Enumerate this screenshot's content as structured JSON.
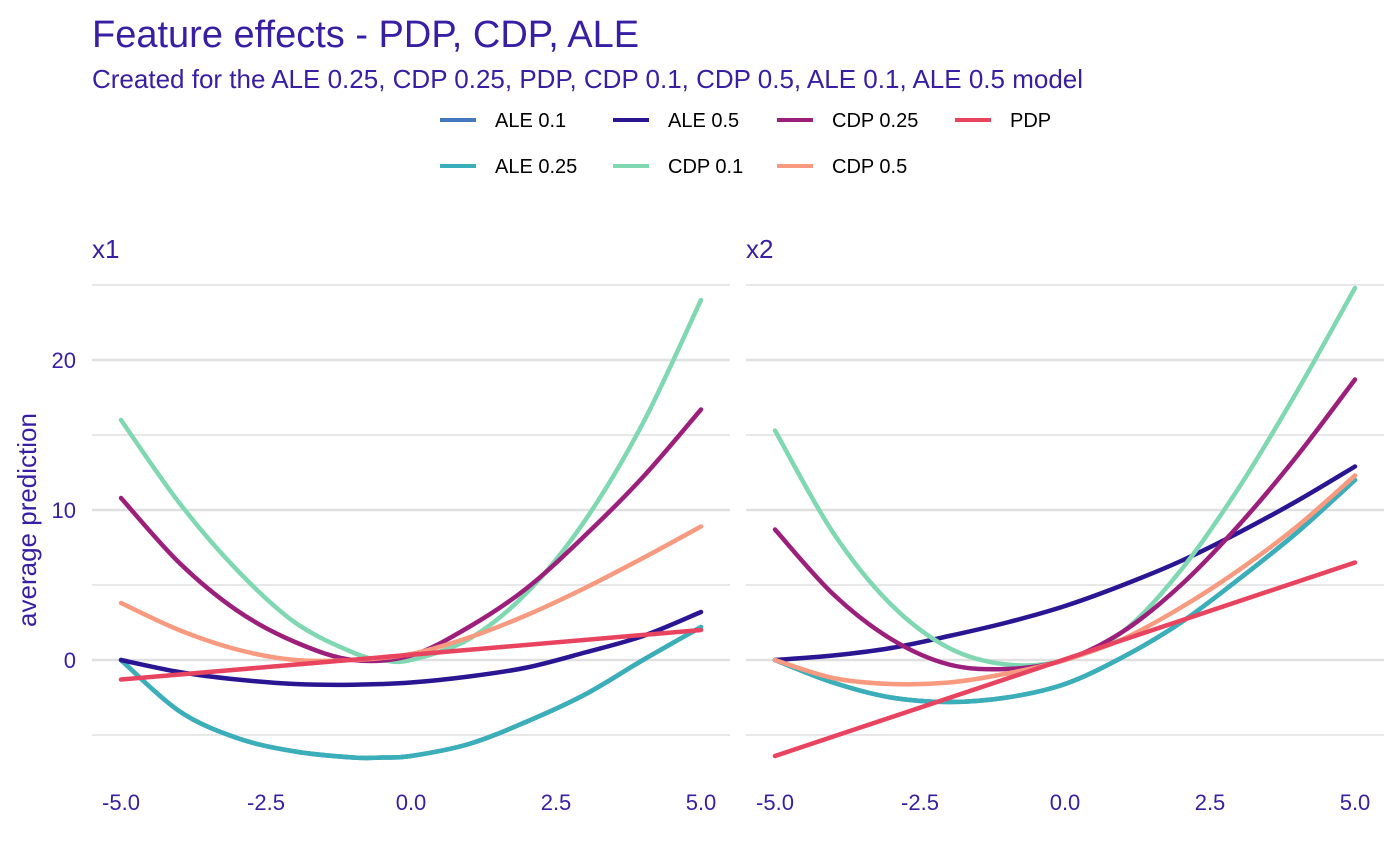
{
  "title": "Feature effects - PDP, CDP, ALE",
  "subtitle": "Created for the ALE 0.25, CDP 0.25, PDP, CDP 0.1, CDP 0.5, ALE 0.1, ALE 0.5 model",
  "colors": {
    "text": "#371ea3",
    "grid": "#e0e0e0",
    "ALE 0.1": "#4378bf",
    "ALE 0.5": "#2a1592",
    "CDP 0.25": "#9c1f7b",
    "PDP": "#e8435f",
    "ALE 0.25": "#3aafb9",
    "CDP 0.1": "#7fd8b1",
    "CDP 0.5": "#f89a7f"
  },
  "legend": {
    "position": "top",
    "row1": [
      "ALE 0.1",
      "ALE 0.5",
      "CDP 0.25",
      "PDP"
    ],
    "row2": [
      "ALE 0.25",
      "CDP 0.1",
      "CDP 0.5"
    ]
  },
  "chart_data": [
    {
      "type": "line",
      "panel": "x1",
      "title": "x1",
      "ylabel": "average prediction",
      "xlabel": "",
      "xlim": [
        -5.0,
        5.0
      ],
      "ylim": [
        -9,
        25
      ],
      "xticks": [
        "-5.0",
        "-2.5",
        "0.0",
        "2.5",
        "5.0"
      ],
      "yticks": [
        "0",
        "10",
        "20"
      ],
      "grid": true,
      "series": [
        {
          "name": "ALE 0.1",
          "x": [
            -5,
            -4,
            -3,
            -2,
            -1,
            -0.5,
            0,
            1,
            2,
            3,
            4,
            5
          ],
          "y": [
            0,
            -3.4,
            -5.2,
            -6.1,
            -6.5,
            -6.5,
            -6.4,
            -5.6,
            -4.1,
            -2.3,
            0,
            2.2
          ]
        },
        {
          "name": "ALE 0.25",
          "x": [
            -5,
            -4,
            -3,
            -2,
            -1,
            -0.5,
            0,
            1,
            2,
            3,
            4,
            5
          ],
          "y": [
            0,
            -3.4,
            -5.2,
            -6.1,
            -6.5,
            -6.5,
            -6.4,
            -5.6,
            -4.1,
            -2.3,
            0,
            2.2
          ]
        },
        {
          "name": "ALE 0.5",
          "x": [
            -5,
            -4,
            -3,
            -2,
            -1,
            0,
            1,
            2,
            3,
            4,
            5
          ],
          "y": [
            0,
            -0.8,
            -1.3,
            -1.6,
            -1.65,
            -1.5,
            -1.1,
            -0.5,
            0.5,
            1.6,
            3.2
          ]
        },
        {
          "name": "CDP 0.1",
          "x": [
            -5,
            -4,
            -3,
            -2,
            -1,
            -0.5,
            0,
            1,
            2,
            3,
            4,
            5
          ],
          "y": [
            16,
            10.5,
            6,
            2.5,
            0.5,
            0,
            0,
            1.4,
            4.5,
            9.3,
            15.8,
            24
          ]
        },
        {
          "name": "CDP 0.25",
          "x": [
            -5,
            -4,
            -3,
            -2,
            -1,
            0,
            1,
            2,
            3,
            4,
            5
          ],
          "y": [
            10.8,
            6.5,
            3.3,
            1.2,
            0,
            0.3,
            2.2,
            4.8,
            8.3,
            12.2,
            16.7
          ]
        },
        {
          "name": "CDP 0.5",
          "x": [
            -5,
            -4,
            -3,
            -2,
            -1,
            0,
            1,
            2,
            3,
            4,
            5
          ],
          "y": [
            3.8,
            2,
            0.7,
            0,
            0,
            0.4,
            1.5,
            3,
            4.8,
            6.8,
            8.9
          ]
        },
        {
          "name": "PDP",
          "x": [
            -5,
            5
          ],
          "y": [
            -1.3,
            2.0
          ]
        }
      ]
    },
    {
      "type": "line",
      "panel": "x2",
      "title": "x2",
      "ylabel": "",
      "xlabel": "",
      "xlim": [
        -5.0,
        5.0
      ],
      "ylim": [
        -9,
        25
      ],
      "xticks": [
        "-5.0",
        "-2.5",
        "0.0",
        "2.5",
        "5.0"
      ],
      "yticks": [
        "0",
        "10",
        "20"
      ],
      "grid": true,
      "series": [
        {
          "name": "ALE 0.1",
          "x": [
            -5,
            -4,
            -3,
            -2,
            -1,
            0,
            1,
            2,
            3,
            4,
            5
          ],
          "y": [
            0,
            -1.5,
            -2.5,
            -2.8,
            -2.5,
            -1.6,
            0.2,
            2.5,
            5.4,
            8.5,
            12
          ]
        },
        {
          "name": "ALE 0.25",
          "x": [
            -5,
            -4,
            -3,
            -2,
            -1,
            0,
            1,
            2,
            3,
            4,
            5
          ],
          "y": [
            0,
            -1.5,
            -2.5,
            -2.8,
            -2.5,
            -1.6,
            0.2,
            2.5,
            5.4,
            8.5,
            12
          ]
        },
        {
          "name": "ALE 0.5",
          "x": [
            -5,
            -4,
            -3,
            -2,
            -1,
            0,
            1,
            2,
            3,
            4,
            5
          ],
          "y": [
            0,
            0.3,
            0.8,
            1.6,
            2.5,
            3.6,
            5,
            6.6,
            8.5,
            10.6,
            12.9
          ]
        },
        {
          "name": "CDP 0.1",
          "x": [
            -5,
            -4,
            -3,
            -2,
            -1,
            0,
            1,
            2,
            3,
            4,
            5
          ],
          "y": [
            15.3,
            8.5,
            3.7,
            0.8,
            -0.3,
            0,
            1.9,
            6,
            11.5,
            17.9,
            24.8
          ]
        },
        {
          "name": "CDP 0.25",
          "x": [
            -5,
            -4,
            -3,
            -2,
            -1,
            0,
            1,
            2,
            3,
            4,
            5
          ],
          "y": [
            8.7,
            4.4,
            1.4,
            -0.3,
            -0.6,
            0,
            1.9,
            5,
            9,
            13.6,
            18.7
          ]
        },
        {
          "name": "CDP 0.5",
          "x": [
            -5,
            -4,
            -3,
            -2,
            -1,
            0,
            1,
            2,
            3,
            4,
            5
          ],
          "y": [
            0,
            -1.2,
            -1.6,
            -1.5,
            -0.9,
            0,
            1.4,
            3.5,
            6,
            8.9,
            12.3
          ]
        },
        {
          "name": "PDP",
          "x": [
            -5,
            5
          ],
          "y": [
            -6.4,
            6.5
          ]
        }
      ]
    }
  ]
}
